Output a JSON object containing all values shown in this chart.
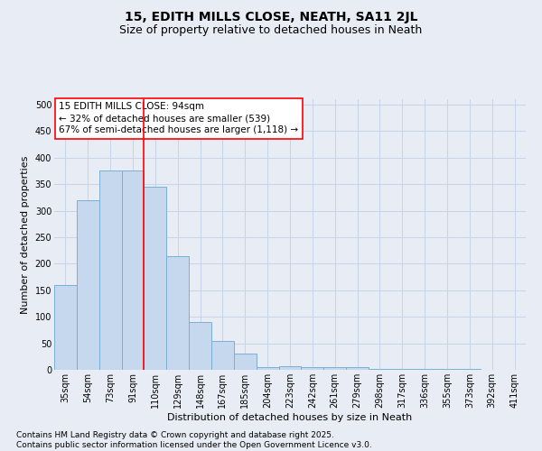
{
  "title1": "15, EDITH MILLS CLOSE, NEATH, SA11 2JL",
  "title2": "Size of property relative to detached houses in Neath",
  "xlabel": "Distribution of detached houses by size in Neath",
  "ylabel": "Number of detached properties",
  "categories": [
    "35sqm",
    "54sqm",
    "73sqm",
    "91sqm",
    "110sqm",
    "129sqm",
    "148sqm",
    "167sqm",
    "185sqm",
    "204sqm",
    "223sqm",
    "242sqm",
    "261sqm",
    "279sqm",
    "298sqm",
    "317sqm",
    "336sqm",
    "355sqm",
    "373sqm",
    "392sqm",
    "411sqm"
  ],
  "values": [
    160,
    320,
    375,
    375,
    345,
    215,
    90,
    55,
    30,
    5,
    7,
    5,
    5,
    5,
    2,
    2,
    1,
    1,
    1,
    0,
    0
  ],
  "bar_color": "#c5d8ed",
  "bar_edge_color": "#7bafd4",
  "vline_x_pos": 3.5,
  "vline_color": "red",
  "annotation_text": "15 EDITH MILLS CLOSE: 94sqm\n← 32% of detached houses are smaller (539)\n67% of semi-detached houses are larger (1,118) →",
  "annotation_box_color": "#ffffff",
  "annotation_edge_color": "red",
  "ylim": [
    0,
    510
  ],
  "yticks": [
    0,
    50,
    100,
    150,
    200,
    250,
    300,
    350,
    400,
    450,
    500
  ],
  "grid_color": "#c8d4e8",
  "background_color": "#e8edf5",
  "footer": "Contains HM Land Registry data © Crown copyright and database right 2025.\nContains public sector information licensed under the Open Government Licence v3.0.",
  "title_fontsize": 10,
  "subtitle_fontsize": 9,
  "axis_label_fontsize": 8,
  "tick_fontsize": 7,
  "annotation_fontsize": 7.5,
  "footer_fontsize": 6.5
}
